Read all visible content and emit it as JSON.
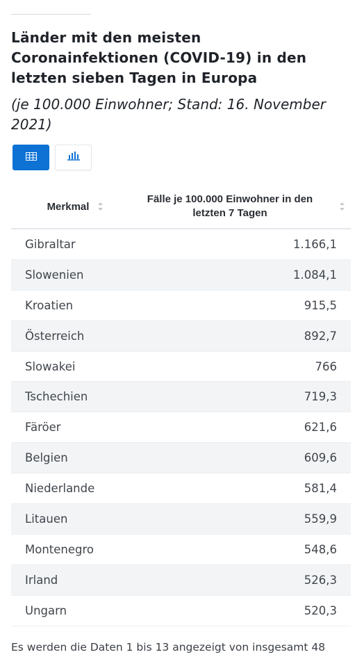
{
  "title": "Länder mit den meisten Coronainfektionen (COVID-19) in den letzten sieben Tagen in Europa",
  "subtitle": "(je 100.000 Einwohner; Stand: 16. November 2021)",
  "view_toggle": {
    "table_icon": "table-icon",
    "chart_icon": "bar-chart-icon",
    "active": "table"
  },
  "table": {
    "columns": [
      "Merkmal",
      "Fälle je 100.000 Einwohner in den letzten 7 Tagen"
    ],
    "rows": [
      [
        "Gibraltar",
        "1.166,1"
      ],
      [
        "Slowenien",
        "1.084,1"
      ],
      [
        "Kroatien",
        "915,5"
      ],
      [
        "Österreich",
        "892,7"
      ],
      [
        "Slowakei",
        "766"
      ],
      [
        "Tschechien",
        "719,3"
      ],
      [
        "Färöer",
        "621,6"
      ],
      [
        "Belgien",
        "609,6"
      ],
      [
        "Niederlande",
        "581,4"
      ],
      [
        "Litauen",
        "559,9"
      ],
      [
        "Montenegro",
        "548,6"
      ],
      [
        "Irland",
        "526,3"
      ],
      [
        "Ungarn",
        "520,3"
      ]
    ]
  },
  "footer": "Es werden die Daten 1 bis 13 angezeigt von insgesamt 48",
  "colors": {
    "accent": "#0d72d4",
    "row_alt": "#f2f4f6"
  }
}
